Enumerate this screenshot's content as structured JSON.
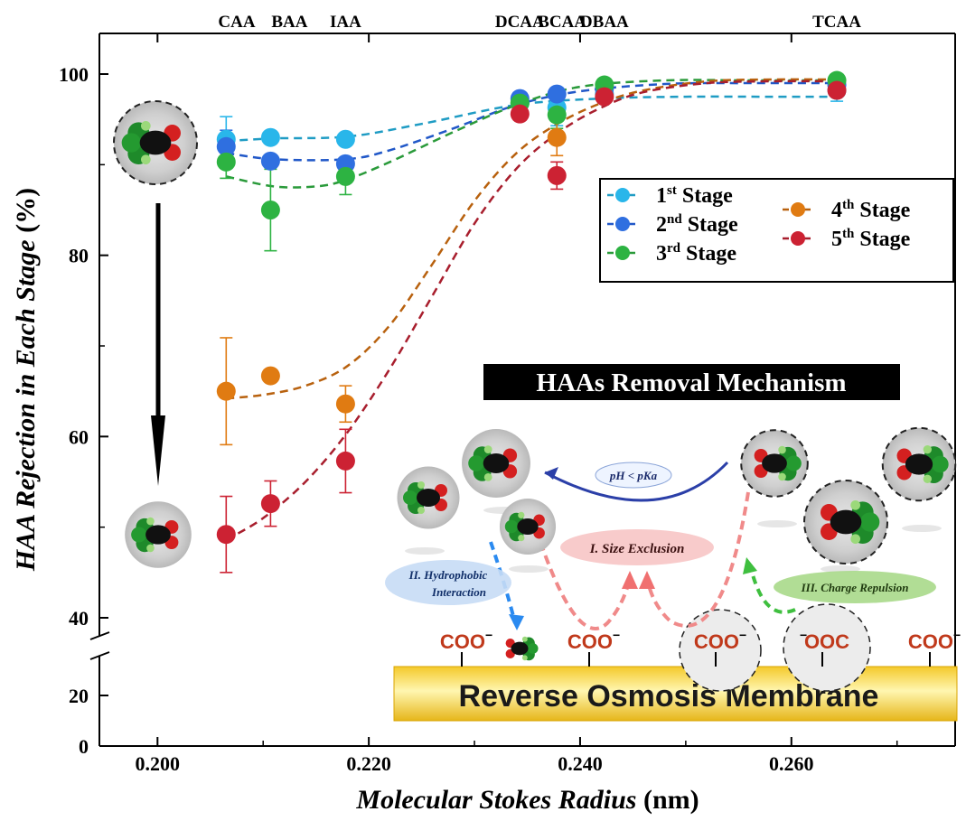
{
  "chart_data": {
    "type": "scatter",
    "xlabel_italic": "Molecular Stokes Radius",
    "xlabel_unit": "(nm)",
    "ylabel_italic": "HAA Rejection in Each Stage",
    "ylabel_unit": "(%)",
    "xlim": [
      0.1945,
      0.2755
    ],
    "x_ticks": [
      "0.200",
      "0.220",
      "0.240",
      "0.260"
    ],
    "x_tick_values": [
      0.2,
      0.22,
      0.24,
      0.26
    ],
    "y_ticks": [
      "0",
      "20",
      "40",
      "60",
      "80",
      "100"
    ],
    "y_tick_values": [
      0,
      20,
      40,
      60,
      80,
      100
    ],
    "y_axis_break": [
      25,
      38
    ],
    "top_labels": [
      {
        "label": "CAA",
        "x": 0.2075
      },
      {
        "label": "BAA",
        "x": 0.2125
      },
      {
        "label": "IAA",
        "x": 0.2178
      },
      {
        "label": "DCAA",
        "x": 0.2343
      },
      {
        "label": "BCAA",
        "x": 0.2383
      },
      {
        "label": "DBAA",
        "x": 0.2423
      },
      {
        "label": "TCAA",
        "x": 0.2643
      }
    ],
    "series": [
      {
        "name": "1st Stage",
        "name_base": "1",
        "name_sup": "st",
        "name_rest": " Stage",
        "color": "#29b6ea",
        "line_color": "#1f9cc4",
        "x": [
          0.2065,
          0.2107,
          0.2178,
          0.2343,
          0.2378,
          0.2423,
          0.2643
        ],
        "y": [
          92.8,
          93.0,
          92.8,
          96.8,
          96.3,
          97.8,
          98.2
        ],
        "err": [
          2.5,
          0,
          0,
          1.0,
          2.0,
          0.5,
          1.2
        ],
        "curve_x": [
          0.2065,
          0.211,
          0.218,
          0.225,
          0.234,
          0.242,
          0.25,
          0.258,
          0.2643
        ],
        "curve_y": [
          92.6,
          92.9,
          93.1,
          94.5,
          96.6,
          97.3,
          97.5,
          97.5,
          97.5
        ]
      },
      {
        "name": "2nd Stage",
        "name_base": "2",
        "name_sup": "nd",
        "name_rest": " Stage",
        "color": "#2f6fe0",
        "line_color": "#2158c8",
        "x": [
          0.2065,
          0.2107,
          0.2178,
          0.2343,
          0.2378,
          0.2423,
          0.2643
        ],
        "y": [
          92.0,
          90.4,
          90.1,
          97.3,
          97.8,
          98.4,
          98.8
        ],
        "err": [
          1.8,
          0,
          0,
          0.5,
          0.5,
          0.5,
          0
        ],
        "curve_x": [
          0.2065,
          0.211,
          0.2178,
          0.222,
          0.228,
          0.234,
          0.24,
          0.248,
          0.256,
          0.2643
        ],
        "curve_y": [
          91.3,
          90.6,
          90.6,
          91.6,
          94.0,
          96.6,
          98.1,
          98.9,
          99.0,
          99.0
        ]
      },
      {
        "name": "3rd Stage",
        "name_base": "3",
        "name_sup": "rd",
        "name_rest": " Stage",
        "color": "#2db342",
        "line_color": "#2a9a3a",
        "x": [
          0.2065,
          0.2107,
          0.2178,
          0.2343,
          0.2378,
          0.2423,
          0.2643
        ],
        "y": [
          90.3,
          85.0,
          88.7,
          96.8,
          95.5,
          98.8,
          99.3
        ],
        "err": [
          1.8,
          4.5,
          2.0,
          0.5,
          1.5,
          0.5,
          0.5
        ],
        "curve_x": [
          0.2065,
          0.211,
          0.215,
          0.2178,
          0.222,
          0.228,
          0.234,
          0.24,
          0.248,
          0.256,
          0.2643
        ],
        "curve_y": [
          88.7,
          87.6,
          87.6,
          88.3,
          90.3,
          93.6,
          96.6,
          98.6,
          99.3,
          99.3,
          99.3
        ]
      },
      {
        "name": "4th Stage",
        "name_base": "4",
        "name_sup": "th",
        "name_rest": " Stage",
        "color": "#e07b12",
        "line_color": "#b8610e",
        "x": [
          0.2065,
          0.2107,
          0.2178,
          0.2378
        ],
        "y": [
          65.0,
          66.7,
          63.6,
          93.0
        ],
        "err": [
          5.9,
          0,
          2.0,
          2.0
        ],
        "curve_x": [
          0.2065,
          0.21,
          0.214,
          0.218,
          0.222,
          0.226,
          0.23,
          0.234,
          0.238,
          0.242,
          0.246,
          0.252,
          0.258,
          0.2643
        ],
        "curve_y": [
          64.2,
          64.6,
          65.6,
          67.8,
          72.3,
          79.0,
          86.0,
          91.3,
          94.6,
          96.8,
          98.2,
          99.2,
          99.4,
          99.4
        ]
      },
      {
        "name": "5th Stage",
        "name_base": "5",
        "name_sup": "th",
        "name_rest": " Stage",
        "color": "#cc2233",
        "line_color": "#a81e2d",
        "x": [
          0.2065,
          0.2107,
          0.2178,
          0.2343,
          0.2378,
          0.2423,
          0.2643
        ],
        "y": [
          49.2,
          52.6,
          57.3,
          95.6,
          88.8,
          97.5,
          98.2
        ],
        "err": [
          4.2,
          2.5,
          3.5,
          0,
          1.5,
          0.5,
          0
        ],
        "curve_x": [
          0.2065,
          0.21,
          0.214,
          0.218,
          0.222,
          0.226,
          0.23,
          0.234,
          0.238,
          0.242,
          0.246,
          0.252,
          0.258,
          0.2643
        ],
        "curve_y": [
          48.6,
          51.0,
          55.0,
          60.5,
          67.5,
          75.5,
          83.5,
          89.6,
          93.6,
          96.3,
          98.0,
          99.0,
          99.2,
          99.2
        ]
      }
    ],
    "legend_placement": "upper-right"
  },
  "inset": {
    "title": "HAAs Removal Mechanism",
    "ph_label": "pH < pKa",
    "size_exclusion_label": "I.   Size Exclusion",
    "hydrophobic_line1": "II.   Hydrophobic",
    "hydrophobic_line2": "Interaction",
    "charge_label": "III.  Charge Repulsion",
    "membrane_label": "Reverse Osmosis Membrane",
    "coo_labels": [
      "COO",
      "COO",
      "COO",
      "OOC",
      "COO"
    ],
    "minus": "−",
    "colors": {
      "membrane_yellow": "#f6d63a",
      "arrow_pink": "#f08080",
      "arrow_blue": "#2a8af0",
      "arrow_green": "#3fbf3f",
      "coo_red": "#c0391b"
    }
  }
}
